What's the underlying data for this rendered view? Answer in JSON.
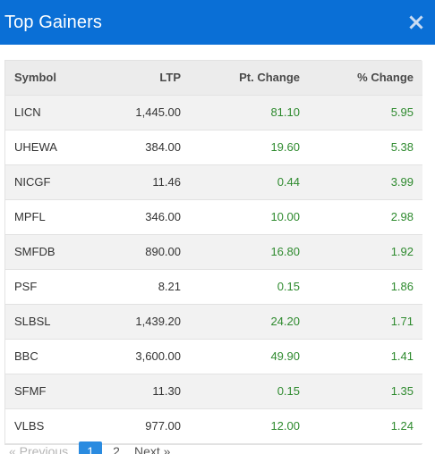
{
  "header": {
    "title": "Top Gainers",
    "close_icon": "close-icon"
  },
  "table": {
    "columns": [
      "Symbol",
      "LTP",
      "Pt. Change",
      "% Change"
    ],
    "rows": [
      {
        "symbol": "LICN",
        "ltp": "1,445.00",
        "pt_change": "81.10",
        "pct_change": "5.95"
      },
      {
        "symbol": "UHEWA",
        "ltp": "384.00",
        "pt_change": "19.60",
        "pct_change": "5.38"
      },
      {
        "symbol": "NICGF",
        "ltp": "11.46",
        "pt_change": "0.44",
        "pct_change": "3.99"
      },
      {
        "symbol": "MPFL",
        "ltp": "346.00",
        "pt_change": "10.00",
        "pct_change": "2.98"
      },
      {
        "symbol": "SMFDB",
        "ltp": "890.00",
        "pt_change": "16.80",
        "pct_change": "1.92"
      },
      {
        "symbol": "PSF",
        "ltp": "8.21",
        "pt_change": "0.15",
        "pct_change": "1.86"
      },
      {
        "symbol": "SLBSL",
        "ltp": "1,439.20",
        "pt_change": "24.20",
        "pct_change": "1.71"
      },
      {
        "symbol": "BBC",
        "ltp": "3,600.00",
        "pt_change": "49.90",
        "pct_change": "1.41"
      },
      {
        "symbol": "SFMF",
        "ltp": "11.30",
        "pt_change": "0.15",
        "pct_change": "1.35"
      },
      {
        "symbol": "VLBS",
        "ltp": "977.00",
        "pt_change": "12.00",
        "pct_change": "1.24"
      }
    ]
  },
  "pagination": {
    "previous": "« Previous",
    "pages": [
      "1",
      "2"
    ],
    "current": "1",
    "next": "Next »"
  },
  "colors": {
    "header_bg": "#0a6fd6",
    "positive": "#2e8a2e",
    "active_page": "#2a8be0"
  }
}
